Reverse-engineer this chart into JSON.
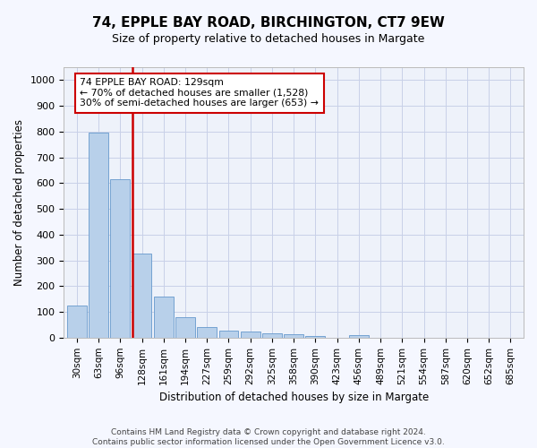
{
  "title_line1": "74, EPPLE BAY ROAD, BIRCHINGTON, CT7 9EW",
  "title_line2": "Size of property relative to detached houses in Margate",
  "xlabel": "Distribution of detached houses by size in Margate",
  "ylabel": "Number of detached properties",
  "categories": [
    "30sqm",
    "63sqm",
    "96sqm",
    "128sqm",
    "161sqm",
    "194sqm",
    "227sqm",
    "259sqm",
    "292sqm",
    "325sqm",
    "358sqm",
    "390sqm",
    "423sqm",
    "456sqm",
    "489sqm",
    "521sqm",
    "554sqm",
    "587sqm",
    "620sqm",
    "652sqm",
    "685sqm"
  ],
  "values": [
    125,
    795,
    615,
    328,
    160,
    78,
    40,
    28,
    25,
    18,
    15,
    8,
    0,
    10,
    0,
    0,
    0,
    0,
    0,
    0,
    0
  ],
  "bar_color": "#b8d0ea",
  "bar_edge_color": "#6699cc",
  "vline_color": "#cc0000",
  "annotation_line1": "74 EPPLE BAY ROAD: 129sqm",
  "annotation_line2": "← 70% of detached houses are smaller (1,528)",
  "annotation_line3": "30% of semi-detached houses are larger (653) →",
  "annotation_box_color": "#ffffff",
  "annotation_box_edge": "#cc0000",
  "ylim": [
    0,
    1050
  ],
  "yticks": [
    0,
    100,
    200,
    300,
    400,
    500,
    600,
    700,
    800,
    900,
    1000
  ],
  "footnote_line1": "Contains HM Land Registry data © Crown copyright and database right 2024.",
  "footnote_line2": "Contains public sector information licensed under the Open Government Licence v3.0.",
  "bg_color": "#eef2fa",
  "grid_color": "#c8d0e8",
  "fig_bg_color": "#f5f7ff"
}
